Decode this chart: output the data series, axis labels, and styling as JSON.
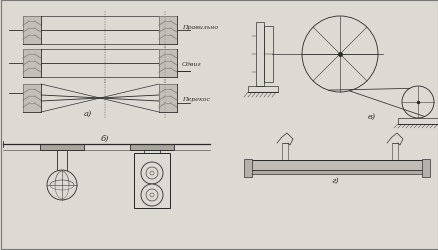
{
  "bg_color": "#ddd9d3",
  "line_color": "#2a2a2a",
  "labels": {
    "pravil": "Правильно",
    "sdig": "Сдвиг",
    "perec": "Перекос",
    "a": "а)",
    "b": "б)",
    "v": "в)",
    "g": "г)"
  },
  "fig_w": 4.39,
  "fig_h": 2.51
}
